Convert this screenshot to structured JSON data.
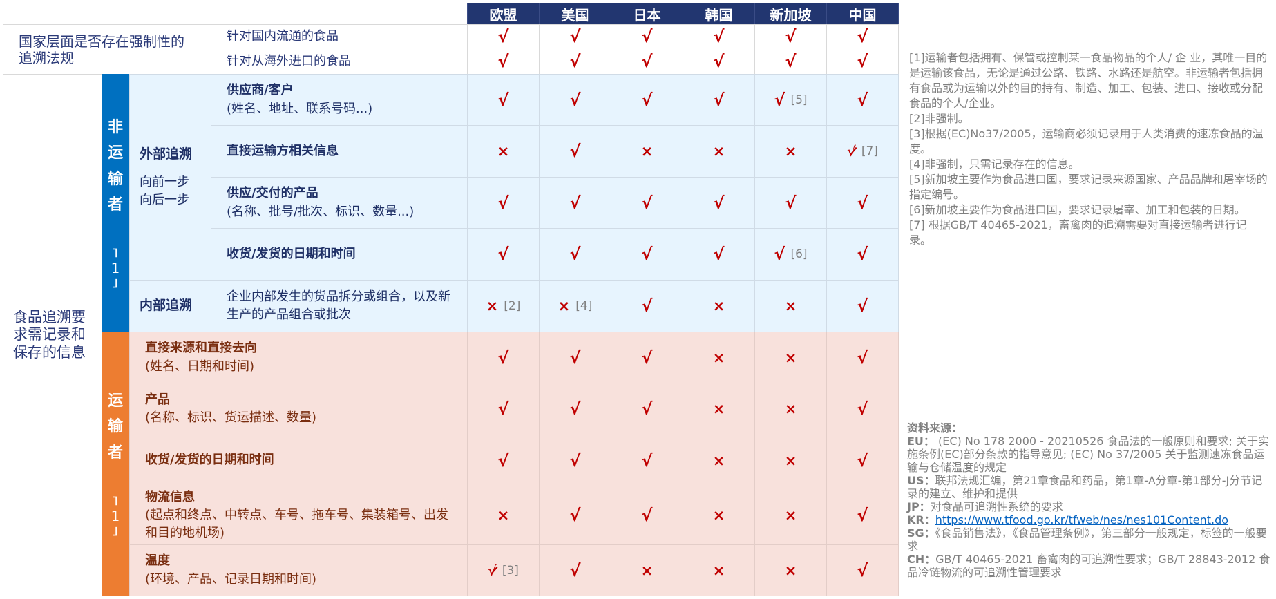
{
  "colors": {
    "header": "#223670",
    "non_transporter": "#0070c0",
    "transporter": "#ed7d31",
    "check": "#c00000"
  },
  "countries": [
    "欧盟",
    "美国",
    "日本",
    "韩国",
    "新加坡",
    "中国"
  ],
  "mandatory": {
    "label": "国家层面是否存在强制性的追溯法规",
    "rows": [
      {
        "item": "针对国内流通的食品",
        "marks": [
          "check",
          "check",
          "check",
          "check",
          "check",
          "check"
        ]
      },
      {
        "item": "针对从海外进口的食品",
        "marks": [
          "check",
          "check",
          "check",
          "check",
          "check",
          "check"
        ]
      }
    ]
  },
  "outer_label": "食品追溯要求需记录和保存的信息",
  "non_transporter": {
    "label": "非运输者",
    "ref": "1",
    "external_label": "外部追溯",
    "external_sub1": "向前一步",
    "external_sub2": "向后一步",
    "internal_label": "内部追溯",
    "rows": [
      {
        "title": "供应商/客户",
        "detail": "(姓名、地址、联系号码...)",
        "marks": [
          "check",
          "check",
          "check",
          "check",
          "check",
          "check"
        ],
        "refs": [
          "",
          "",
          "",
          "",
          "[5]",
          ""
        ]
      },
      {
        "title": "直接运输方相关信息",
        "detail": "",
        "marks": [
          "cross",
          "check",
          "cross",
          "cross",
          "cross",
          "partial"
        ],
        "refs": [
          "",
          "",
          "",
          "",
          "",
          "[7]"
        ]
      },
      {
        "title": "供应/交付的产品",
        "detail": "(名称、批号/批次、标识、数量...)",
        "marks": [
          "check",
          "check",
          "check",
          "check",
          "check",
          "check"
        ],
        "refs": [
          "",
          "",
          "",
          "",
          "",
          ""
        ]
      },
      {
        "title": "收货/发货的日期和时间",
        "detail": "",
        "marks": [
          "check",
          "check",
          "check",
          "check",
          "check",
          "check"
        ],
        "refs": [
          "",
          "",
          "",
          "",
          "[6]",
          ""
        ]
      },
      {
        "title": "",
        "detail": "企业内部发生的货品拆分或组合，以及新生产的产品组合或批次",
        "marks": [
          "cross",
          "cross",
          "check",
          "cross",
          "cross",
          "check"
        ],
        "refs": [
          "[2]",
          "[4]",
          "",
          "",
          "",
          ""
        ]
      }
    ]
  },
  "transporter": {
    "label": "运输者",
    "ref": "1",
    "rows": [
      {
        "title": "直接来源和直接去向",
        "detail": "(姓名、日期和时间)",
        "marks": [
          "check",
          "check",
          "check",
          "cross",
          "cross",
          "check"
        ],
        "refs": [
          "",
          "",
          "",
          "",
          "",
          ""
        ]
      },
      {
        "title": "产品",
        "detail": "(名称、标识、货运描述、数量)",
        "marks": [
          "check",
          "check",
          "check",
          "cross",
          "cross",
          "check"
        ],
        "refs": [
          "",
          "",
          "",
          "",
          "",
          ""
        ]
      },
      {
        "title": "收货/发货的日期和时间",
        "detail": "",
        "marks": [
          "check",
          "check",
          "check",
          "cross",
          "cross",
          "check"
        ],
        "refs": [
          "",
          "",
          "",
          "",
          "",
          ""
        ]
      },
      {
        "title": "物流信息",
        "detail": "(起点和终点、中转点、车号、拖车号、集装箱号、出发和目的地机场)",
        "marks": [
          "cross",
          "check",
          "check",
          "cross",
          "cross",
          "check"
        ],
        "refs": [
          "",
          "",
          "",
          "",
          "",
          ""
        ]
      },
      {
        "title": "温度",
        "detail": "(环境、产品、记录日期和时间)",
        "marks": [
          "partial",
          "check",
          "cross",
          "cross",
          "cross",
          "check"
        ],
        "refs": [
          "[3]",
          "",
          "",
          "",
          "",
          ""
        ]
      }
    ]
  },
  "notes": [
    "[1]运输者包括拥有、保管或控制某一食品物品的个人/ 企 业，其唯一目的是运输该食品，无论是通过公路、铁路、水路还是航空。非运输者包括拥有食品或为运输以外的目的持有、制造、加工、包装、进口、接收或分配食品的个人/企业。",
    "[2]非强制。",
    "[3]根据(EC)No37/2005，运输商必须记录用于人类消费的速冻食品的温度。",
    "[4]非强制，只需记录存在的信息。",
    "[5]新加坡主要作为食品进口国，要求记录来源国家、产品品牌和屠宰场的指定编号。",
    "[6]新加坡主要作为食品进口国，要求记录屠宰、加工和包装的日期。",
    "[7] 根据GB/T 40465-2021，畜禽肉的追溯需要对直接运输者进行记录。"
  ],
  "sources": {
    "title": "资料来源：",
    "items": [
      {
        "key": "EU：",
        "text": " (EC) No 178  2000 - 20210526 食品法的一般原则和要求; 关于实施条例(EC)部分条款的指导意见; (EC) No 37/2005 关于监测速冻食品运输与仓储温度的规定",
        "link": false
      },
      {
        "key": "US：",
        "text": "联邦法规汇编，第21章食品和药品，第1章-A分章-第1部分-J分节记录的建立、维护和提供",
        "link": false
      },
      {
        "key": "JP：",
        "text": "对食品可追溯性系统的要求",
        "link": false
      },
      {
        "key": "KR：",
        "text": "https://www.tfood.go.kr/tfweb/nes/nes101Content.do",
        "link": true
      },
      {
        "key": "SG：",
        "text": "《食品销售法》，《食品管理条例》，第三部分一般规定，标签的一般要求",
        "link": false
      },
      {
        "key": "CH：",
        "text": "GB/T 40465-2021 畜禽肉的可追溯性要求；GB/T 28843-2012 食品冷链物流的可追溯性管理要求",
        "link": false
      }
    ]
  }
}
